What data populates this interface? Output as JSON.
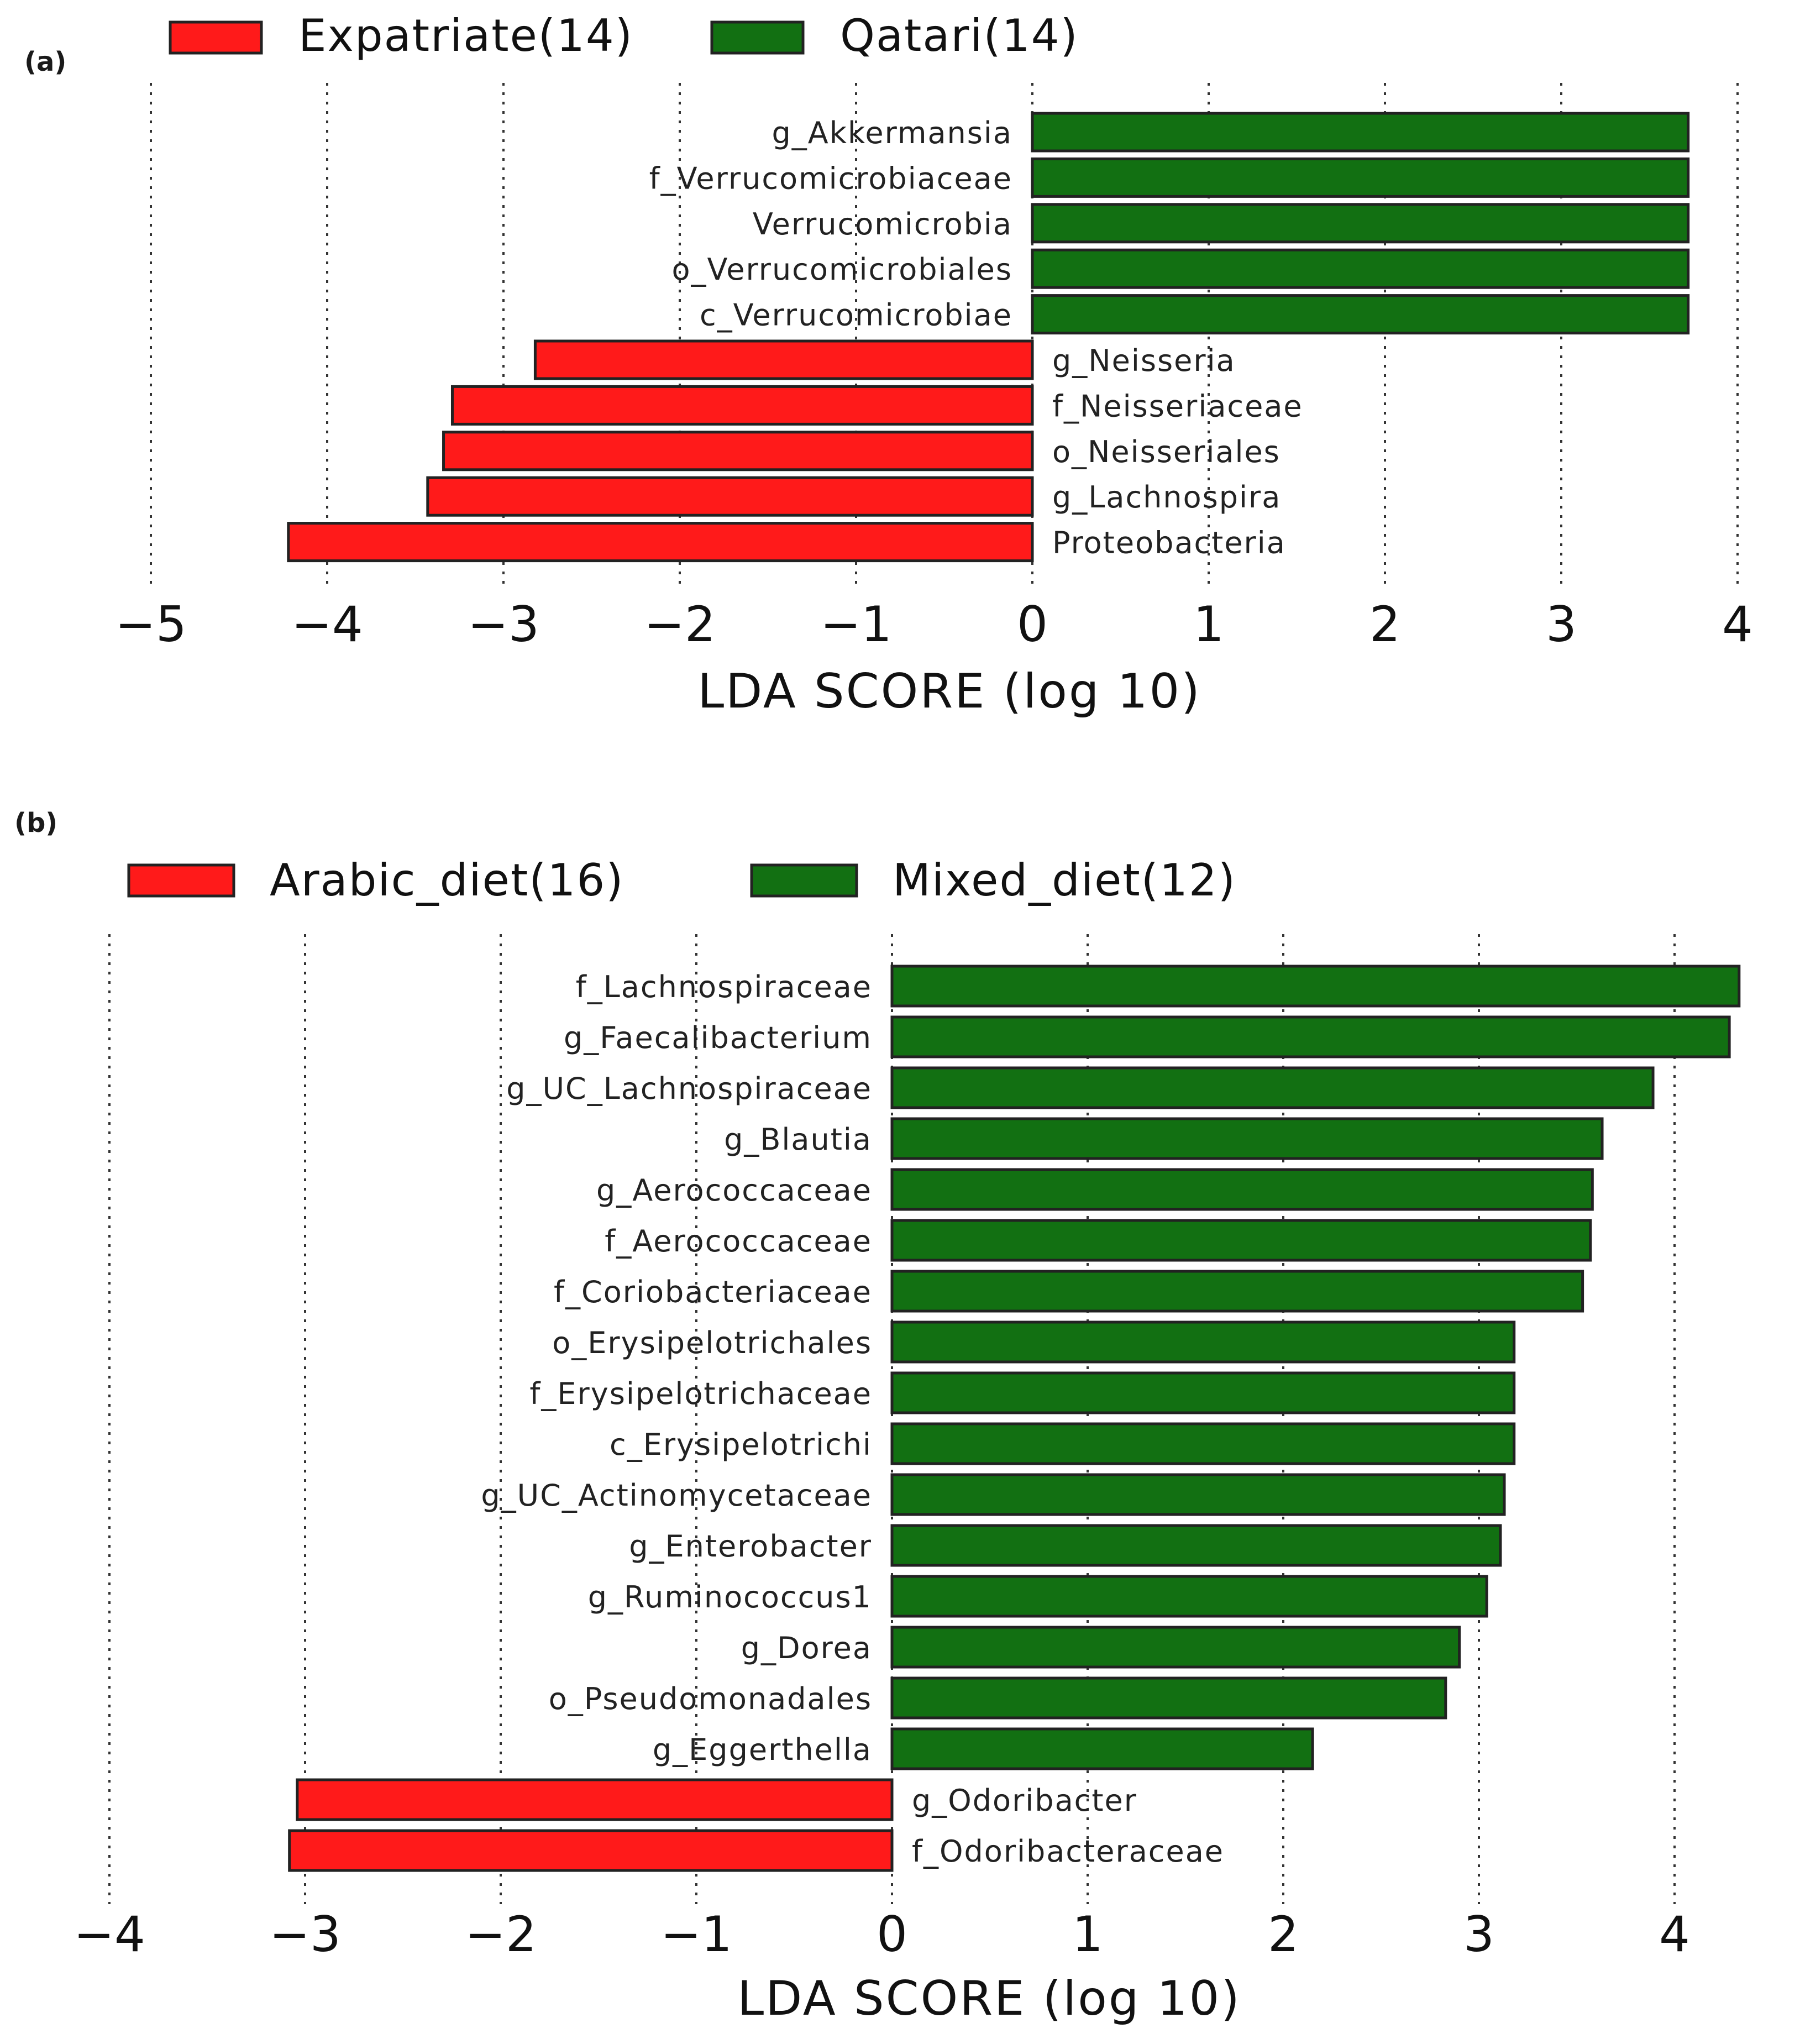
{
  "colors": {
    "negative": "#ff1a1a",
    "positive": "#127012"
  },
  "chart_data": [
    {
      "type": "bar",
      "orientation": "horizontal",
      "panel_label": "(a)",
      "legend": [
        {
          "name": "Expatriate(14)",
          "color": "#ff1a1a"
        },
        {
          "name": "Qatari(14)",
          "color": "#127012"
        }
      ],
      "xlabel": "LDA SCORE (log 10)",
      "xlim": [
        -5,
        4
      ],
      "xticks": [
        -5,
        -4,
        -3,
        -2,
        -1,
        0,
        1,
        2,
        3,
        4
      ],
      "xtick_labels": [
        "−5",
        "−4",
        "−3",
        "−2",
        "−1",
        "0",
        "1",
        "2",
        "3",
        "4"
      ],
      "categories": [
        "g_Akkermansia",
        "f_Verrucomicrobiaceae",
        "Verrucomicrobia",
        "o_Verrucomicrobiales",
        "c_Verrucomicrobiae",
        "g_Neisseria",
        "f_Neisseriaceae",
        "o_Neisseriales",
        "g_Lachnospira",
        "Proteobacteria"
      ],
      "values": [
        3.72,
        3.72,
        3.72,
        3.72,
        3.72,
        -2.82,
        -3.29,
        -3.34,
        -3.43,
        -4.22
      ],
      "grid": "vertical dotted"
    },
    {
      "type": "bar",
      "orientation": "horizontal",
      "panel_label": "(b)",
      "legend": [
        {
          "name": "Arabic_diet(16)",
          "color": "#ff1a1a"
        },
        {
          "name": "Mixed_diet(12)",
          "color": "#127012"
        }
      ],
      "xlabel": "LDA SCORE (log 10)",
      "xlim": [
        -4,
        4.35
      ],
      "xticks": [
        -4,
        -3,
        -2,
        -1,
        0,
        1,
        2,
        3,
        4
      ],
      "xtick_labels": [
        "−4",
        "−3",
        "−2",
        "−1",
        "0",
        "1",
        "2",
        "3",
        "4"
      ],
      "categories": [
        "f_Lachnospiraceae",
        "g_Faecalibacterium",
        "g_UC_Lachnospiraceae",
        "g_Blautia",
        "g_Aerococcaceae",
        "f_Aerococcaceae",
        "f_Coriobacteriaceae",
        "o_Erysipelotrichales",
        "f_Erysipelotrichaceae",
        "c_Erysipelotrichi",
        "g_UC_Actinomycetaceae",
        "g_Enterobacter",
        "g_Ruminococcus1",
        "g_Dorea",
        "o_Pseudomonadales",
        "g_Eggerthella",
        "g_Odoribacter",
        "f_Odoribacteraceae"
      ],
      "values": [
        4.33,
        4.28,
        3.89,
        3.63,
        3.58,
        3.57,
        3.53,
        3.18,
        3.18,
        3.18,
        3.13,
        3.11,
        3.04,
        2.9,
        2.83,
        2.15,
        -3.04,
        -3.08
      ],
      "grid": "vertical dotted"
    }
  ]
}
